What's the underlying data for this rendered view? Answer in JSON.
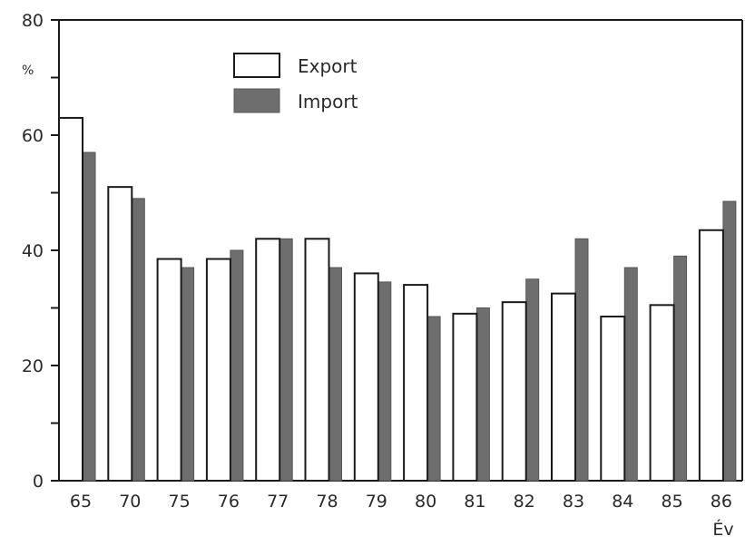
{
  "chart_data": {
    "type": "bar",
    "categories": [
      "65",
      "70",
      "75",
      "76",
      "77",
      "78",
      "79",
      "80",
      "81",
      "82",
      "83",
      "84",
      "85",
      "86"
    ],
    "series": [
      {
        "name": "Export",
        "values": [
          63,
          51,
          38.5,
          38.5,
          42,
          42,
          36,
          34,
          29,
          31,
          32.5,
          28.5,
          30.5,
          43.5
        ]
      },
      {
        "name": "Import",
        "values": [
          57,
          49,
          37,
          40,
          42,
          37,
          34.5,
          28.5,
          30,
          35,
          42,
          37,
          39,
          48.5
        ]
      }
    ],
    "ylabel": "%",
    "xlabel": "Év",
    "ylim": [
      0,
      80
    ],
    "yticks": [
      "0",
      "20",
      "40",
      "60",
      "80"
    ],
    "legend_position": "top-left",
    "grid": false,
    "colors": {
      "Export": "#ffffff",
      "Import": "#6e6e6e",
      "outline": "#1a1a1a"
    }
  }
}
